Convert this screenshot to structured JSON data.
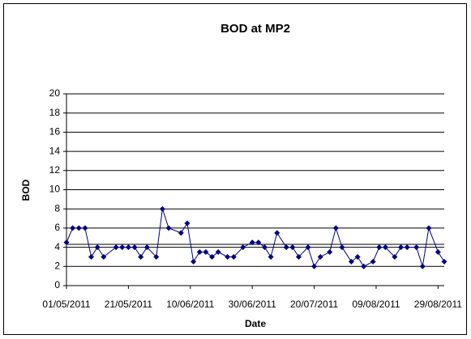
{
  "chart_data": {
    "type": "line",
    "title": "BOD at MP2",
    "x_label": "Date",
    "y_label": "BOD",
    "x": [
      "01/05/2011",
      "03/05/2011",
      "05/05/2011",
      "07/05/2011",
      "09/05/2011",
      "11/05/2011",
      "13/05/2011",
      "17/05/2011",
      "19/05/2011",
      "21/05/2011",
      "23/05/2011",
      "25/05/2011",
      "27/05/2011",
      "30/05/2011",
      "01/06/2011",
      "03/06/2011",
      "07/06/2011",
      "09/06/2011",
      "11/06/2011",
      "13/06/2011",
      "15/06/2011",
      "17/06/2011",
      "19/06/2011",
      "22/06/2011",
      "24/06/2011",
      "27/06/2011",
      "30/06/2011",
      "02/07/2011",
      "04/07/2011",
      "06/07/2011",
      "08/07/2011",
      "11/07/2011",
      "13/07/2011",
      "15/07/2011",
      "18/07/2011",
      "20/07/2011",
      "22/07/2011",
      "25/07/2011",
      "27/07/2011",
      "29/07/2011",
      "01/08/2011",
      "03/08/2011",
      "05/08/2011",
      "08/08/2011",
      "10/08/2011",
      "12/08/2011",
      "15/08/2011",
      "17/08/2011",
      "19/08/2011",
      "22/08/2011",
      "24/08/2011",
      "26/08/2011",
      "29/08/2011",
      "31/08/2011"
    ],
    "values": [
      4.5,
      6,
      6,
      6,
      3,
      4,
      3,
      4,
      4,
      4,
      4,
      3,
      4,
      3,
      8,
      6,
      5.5,
      6.5,
      2.5,
      3.5,
      3.5,
      3,
      3.5,
      3,
      3,
      4,
      4.5,
      4.5,
      4,
      3,
      5.5,
      4,
      4,
      3,
      4,
      2,
      3,
      3.5,
      6,
      4,
      2.5,
      3,
      2,
      2.5,
      4,
      4,
      3,
      4,
      4,
      4,
      2,
      6,
      3.5,
      2.5
    ],
    "color": "#000080",
    "xlim": [
      "01/05/2011",
      "31/08/2011"
    ],
    "xticks": [
      "01/05/2011",
      "21/05/2011",
      "10/06/2011",
      "30/06/2011",
      "20/07/2011",
      "09/08/2011",
      "29/08/2011"
    ],
    "ylim": [
      0,
      20
    ],
    "yticks": [
      0,
      2,
      4,
      6,
      8,
      10,
      12,
      14,
      16,
      18,
      20
    ],
    "grid": true,
    "reference_lines": [
      4.3
    ]
  }
}
